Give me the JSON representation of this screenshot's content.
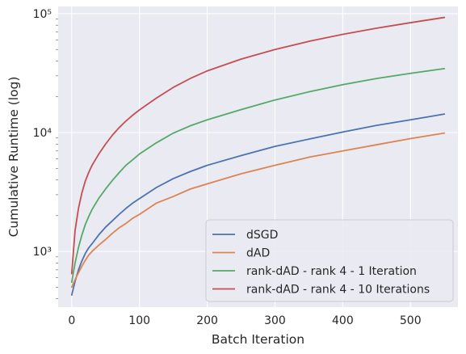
{
  "chart_data": {
    "type": "line",
    "xlabel": "Batch Iteration",
    "ylabel": "Cumulative Runtime (log)",
    "xlim": [
      -20,
      570
    ],
    "ylim": [
      340,
      115000
    ],
    "yscale": "log",
    "xticks": [
      0,
      100,
      200,
      300,
      400,
      500
    ],
    "xtick_labels": [
      "0",
      "100",
      "200",
      "300",
      "400",
      "500"
    ],
    "yticks": [
      1000,
      10000,
      100000
    ],
    "ytick_labels": [
      "10³",
      "10⁴",
      "10⁵"
    ],
    "grid": true,
    "legend_position": "lower right",
    "x": [
      0,
      5,
      10,
      15,
      20,
      25,
      30,
      40,
      50,
      60,
      70,
      80,
      90,
      100,
      125,
      150,
      175,
      200,
      250,
      300,
      350,
      400,
      450,
      500,
      550
    ],
    "series": [
      {
        "name": "dSGD",
        "color": "#4c72b0",
        "values": [
          430,
          560,
          700,
          830,
          960,
          1070,
          1160,
          1380,
          1600,
          1810,
          2050,
          2300,
          2550,
          2780,
          3450,
          4100,
          4700,
          5300,
          6400,
          7650,
          8800,
          10100,
          11500,
          12800,
          14300
        ]
      },
      {
        "name": "dAD",
        "color": "#dd8452",
        "values": [
          500,
          580,
          660,
          750,
          840,
          930,
          1000,
          1130,
          1260,
          1420,
          1580,
          1720,
          1900,
          2050,
          2550,
          2900,
          3350,
          3700,
          4500,
          5300,
          6200,
          7000,
          7900,
          8900,
          9900
        ]
      },
      {
        "name": "rank-dAD - rank 4 - 1 Iteration",
        "color": "#55a868",
        "values": [
          550,
          800,
          1080,
          1370,
          1680,
          1960,
          2250,
          2800,
          3350,
          3950,
          4600,
          5300,
          5900,
          6600,
          8200,
          9900,
          11400,
          12800,
          15600,
          18800,
          22000,
          25300,
          28500,
          31500,
          34500
        ]
      },
      {
        "name": "rank-dAD - rank 4 - 10 Iterations",
        "color": "#c44e52",
        "values": [
          650,
          1500,
          2300,
          3100,
          3900,
          4600,
          5300,
          6600,
          8000,
          9500,
          11000,
          12500,
          14000,
          15500,
          19500,
          24000,
          28500,
          33000,
          41500,
          50000,
          58500,
          67000,
          75500,
          84000,
          93000
        ]
      }
    ]
  }
}
